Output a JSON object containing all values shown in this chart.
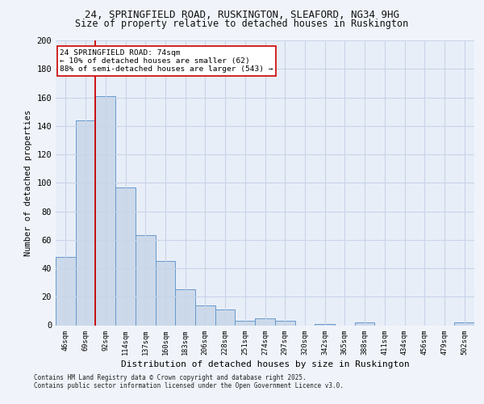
{
  "title1": "24, SPRINGFIELD ROAD, RUSKINGTON, SLEAFORD, NG34 9HG",
  "title2": "Size of property relative to detached houses in Ruskington",
  "xlabel": "Distribution of detached houses by size in Ruskington",
  "ylabel": "Number of detached properties",
  "categories": [
    "46sqm",
    "69sqm",
    "92sqm",
    "114sqm",
    "137sqm",
    "160sqm",
    "183sqm",
    "206sqm",
    "228sqm",
    "251sqm",
    "274sqm",
    "297sqm",
    "320sqm",
    "342sqm",
    "365sqm",
    "388sqm",
    "411sqm",
    "434sqm",
    "456sqm",
    "479sqm",
    "502sqm"
  ],
  "values": [
    48,
    144,
    161,
    97,
    63,
    45,
    25,
    14,
    11,
    3,
    5,
    3,
    0,
    1,
    0,
    2,
    0,
    0,
    0,
    0,
    2
  ],
  "bar_color": "#ccd9ea",
  "bar_edge_color": "#6699cc",
  "highlight_line_color": "#cc0000",
  "annotation_text": "24 SPRINGFIELD ROAD: 74sqm\n← 10% of detached houses are smaller (62)\n88% of semi-detached houses are larger (543) →",
  "annotation_box_color": "#ffffff",
  "annotation_edge_color": "#cc0000",
  "ylim": [
    0,
    200
  ],
  "yticks": [
    0,
    20,
    40,
    60,
    80,
    100,
    120,
    140,
    160,
    180,
    200
  ],
  "grid_color": "#c8d4e8",
  "background_color": "#e8eef8",
  "fig_background": "#f0f4fa",
  "footer_line1": "Contains HM Land Registry data © Crown copyright and database right 2025.",
  "footer_line2": "Contains public sector information licensed under the Open Government Licence v3.0."
}
